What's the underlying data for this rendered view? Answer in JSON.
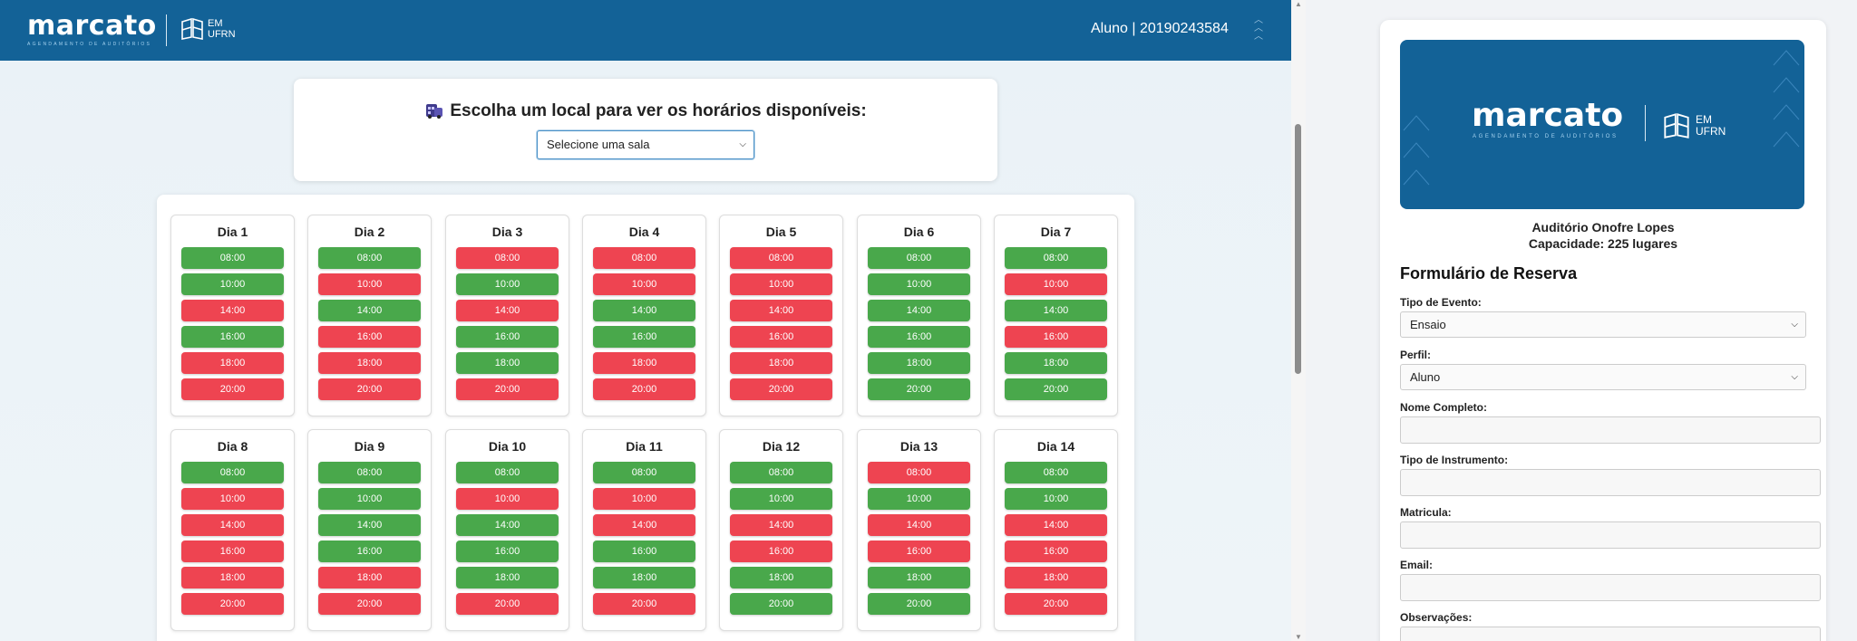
{
  "header": {
    "brand": "marcato",
    "brand_sub": "AGENDAMENTO DE AUDITÓRIOS",
    "ufrn_line1": "EM",
    "ufrn_line2": "UFRN",
    "user": "Aluno | 2019024358​4"
  },
  "selector": {
    "title": "Escolha um local para ver os horários disponíveis:",
    "selected": "Selecione uma sala"
  },
  "colors": {
    "brand": "#136297",
    "free": "#49a84b",
    "busy": "#ee4451"
  },
  "schedule": {
    "times": [
      "08:00",
      "10:00",
      "14:00",
      "16:00",
      "18:00",
      "20:00"
    ],
    "days": [
      {
        "label": "Dia 1",
        "status": [
          "free",
          "free",
          "busy",
          "free",
          "busy",
          "busy"
        ]
      },
      {
        "label": "Dia 2",
        "status": [
          "free",
          "busy",
          "free",
          "busy",
          "busy",
          "busy"
        ]
      },
      {
        "label": "Dia 3",
        "status": [
          "busy",
          "free",
          "busy",
          "free",
          "free",
          "busy"
        ]
      },
      {
        "label": "Dia 4",
        "status": [
          "busy",
          "busy",
          "free",
          "free",
          "busy",
          "busy"
        ]
      },
      {
        "label": "Dia 5",
        "status": [
          "busy",
          "busy",
          "busy",
          "busy",
          "busy",
          "busy"
        ]
      },
      {
        "label": "Dia 6",
        "status": [
          "free",
          "free",
          "free",
          "free",
          "free",
          "free"
        ]
      },
      {
        "label": "Dia 7",
        "status": [
          "free",
          "busy",
          "free",
          "busy",
          "free",
          "free"
        ]
      },
      {
        "label": "Dia 8",
        "status": [
          "free",
          "busy",
          "busy",
          "busy",
          "busy",
          "busy"
        ]
      },
      {
        "label": "Dia 9",
        "status": [
          "free",
          "free",
          "free",
          "free",
          "busy",
          "busy"
        ]
      },
      {
        "label": "Dia 10",
        "status": [
          "free",
          "busy",
          "free",
          "free",
          "free",
          "busy"
        ]
      },
      {
        "label": "Dia 11",
        "status": [
          "free",
          "busy",
          "busy",
          "free",
          "free",
          "busy"
        ]
      },
      {
        "label": "Dia 12",
        "status": [
          "free",
          "free",
          "busy",
          "busy",
          "free",
          "free"
        ]
      },
      {
        "label": "Dia 13",
        "status": [
          "busy",
          "free",
          "busy",
          "busy",
          "free",
          "free"
        ]
      },
      {
        "label": "Dia 14",
        "status": [
          "free",
          "free",
          "busy",
          "busy",
          "busy",
          "busy"
        ]
      }
    ]
  },
  "form": {
    "venue_name": "Auditório Onofre Lopes",
    "venue_capacity": "Capacidade: 225 lugares",
    "heading": "Formulário de Reserva",
    "event_type_label": "Tipo de Evento:",
    "event_type_value": "Ensaio",
    "profile_label": "Perfil:",
    "profile_value": "Aluno",
    "full_name_label": "Nome Completo:",
    "instrument_label": "Tipo de Instrumento:",
    "enrollment_label": "Matricula:",
    "email_label": "Email:",
    "notes_label": "Observações:"
  }
}
